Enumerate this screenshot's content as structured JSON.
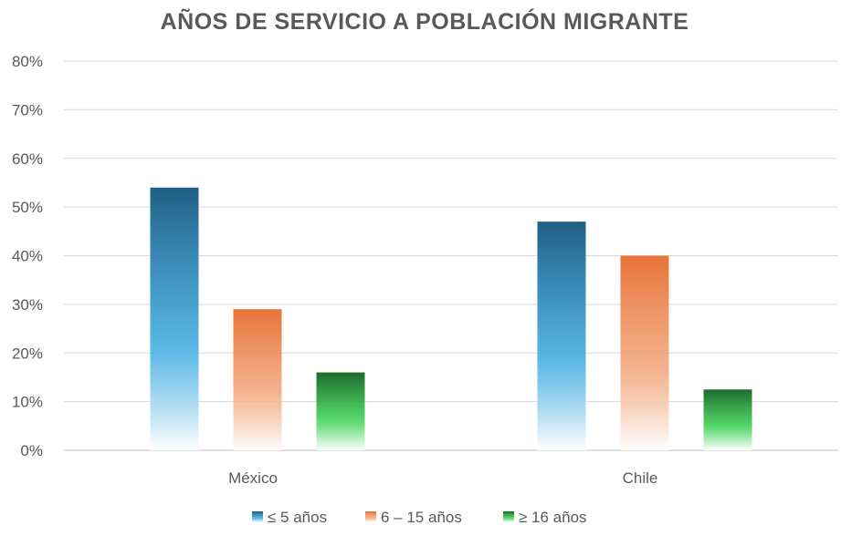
{
  "chart_data": {
    "type": "bar",
    "title": "AÑOS DE SERVICIO A POBLACIÓN MIGRANTE",
    "categories": [
      "México",
      "Chile"
    ],
    "series": [
      {
        "name": "≤ 5 años",
        "values": [
          54,
          47
        ],
        "color_top": "#1f5f86",
        "color_mid": "#3aa9e0",
        "color_bottom": "#ffffff"
      },
      {
        "name": "6 – 15 años",
        "values": [
          29,
          40
        ],
        "color_top": "#e8733a",
        "color_mid": "#f2a77c",
        "color_bottom": "#ffffff"
      },
      {
        "name": "≥ 16 años",
        "values": [
          16,
          12.5
        ],
        "color_top": "#1e6b2c",
        "color_mid": "#36d04f",
        "color_bottom": "#ffffff"
      }
    ],
    "ylim": [
      0,
      80
    ],
    "yticks": [
      "0%",
      "10%",
      "20%",
      "30%",
      "40%",
      "50%",
      "60%",
      "70%",
      "80%"
    ],
    "grid": true,
    "legend_position": "bottom"
  }
}
